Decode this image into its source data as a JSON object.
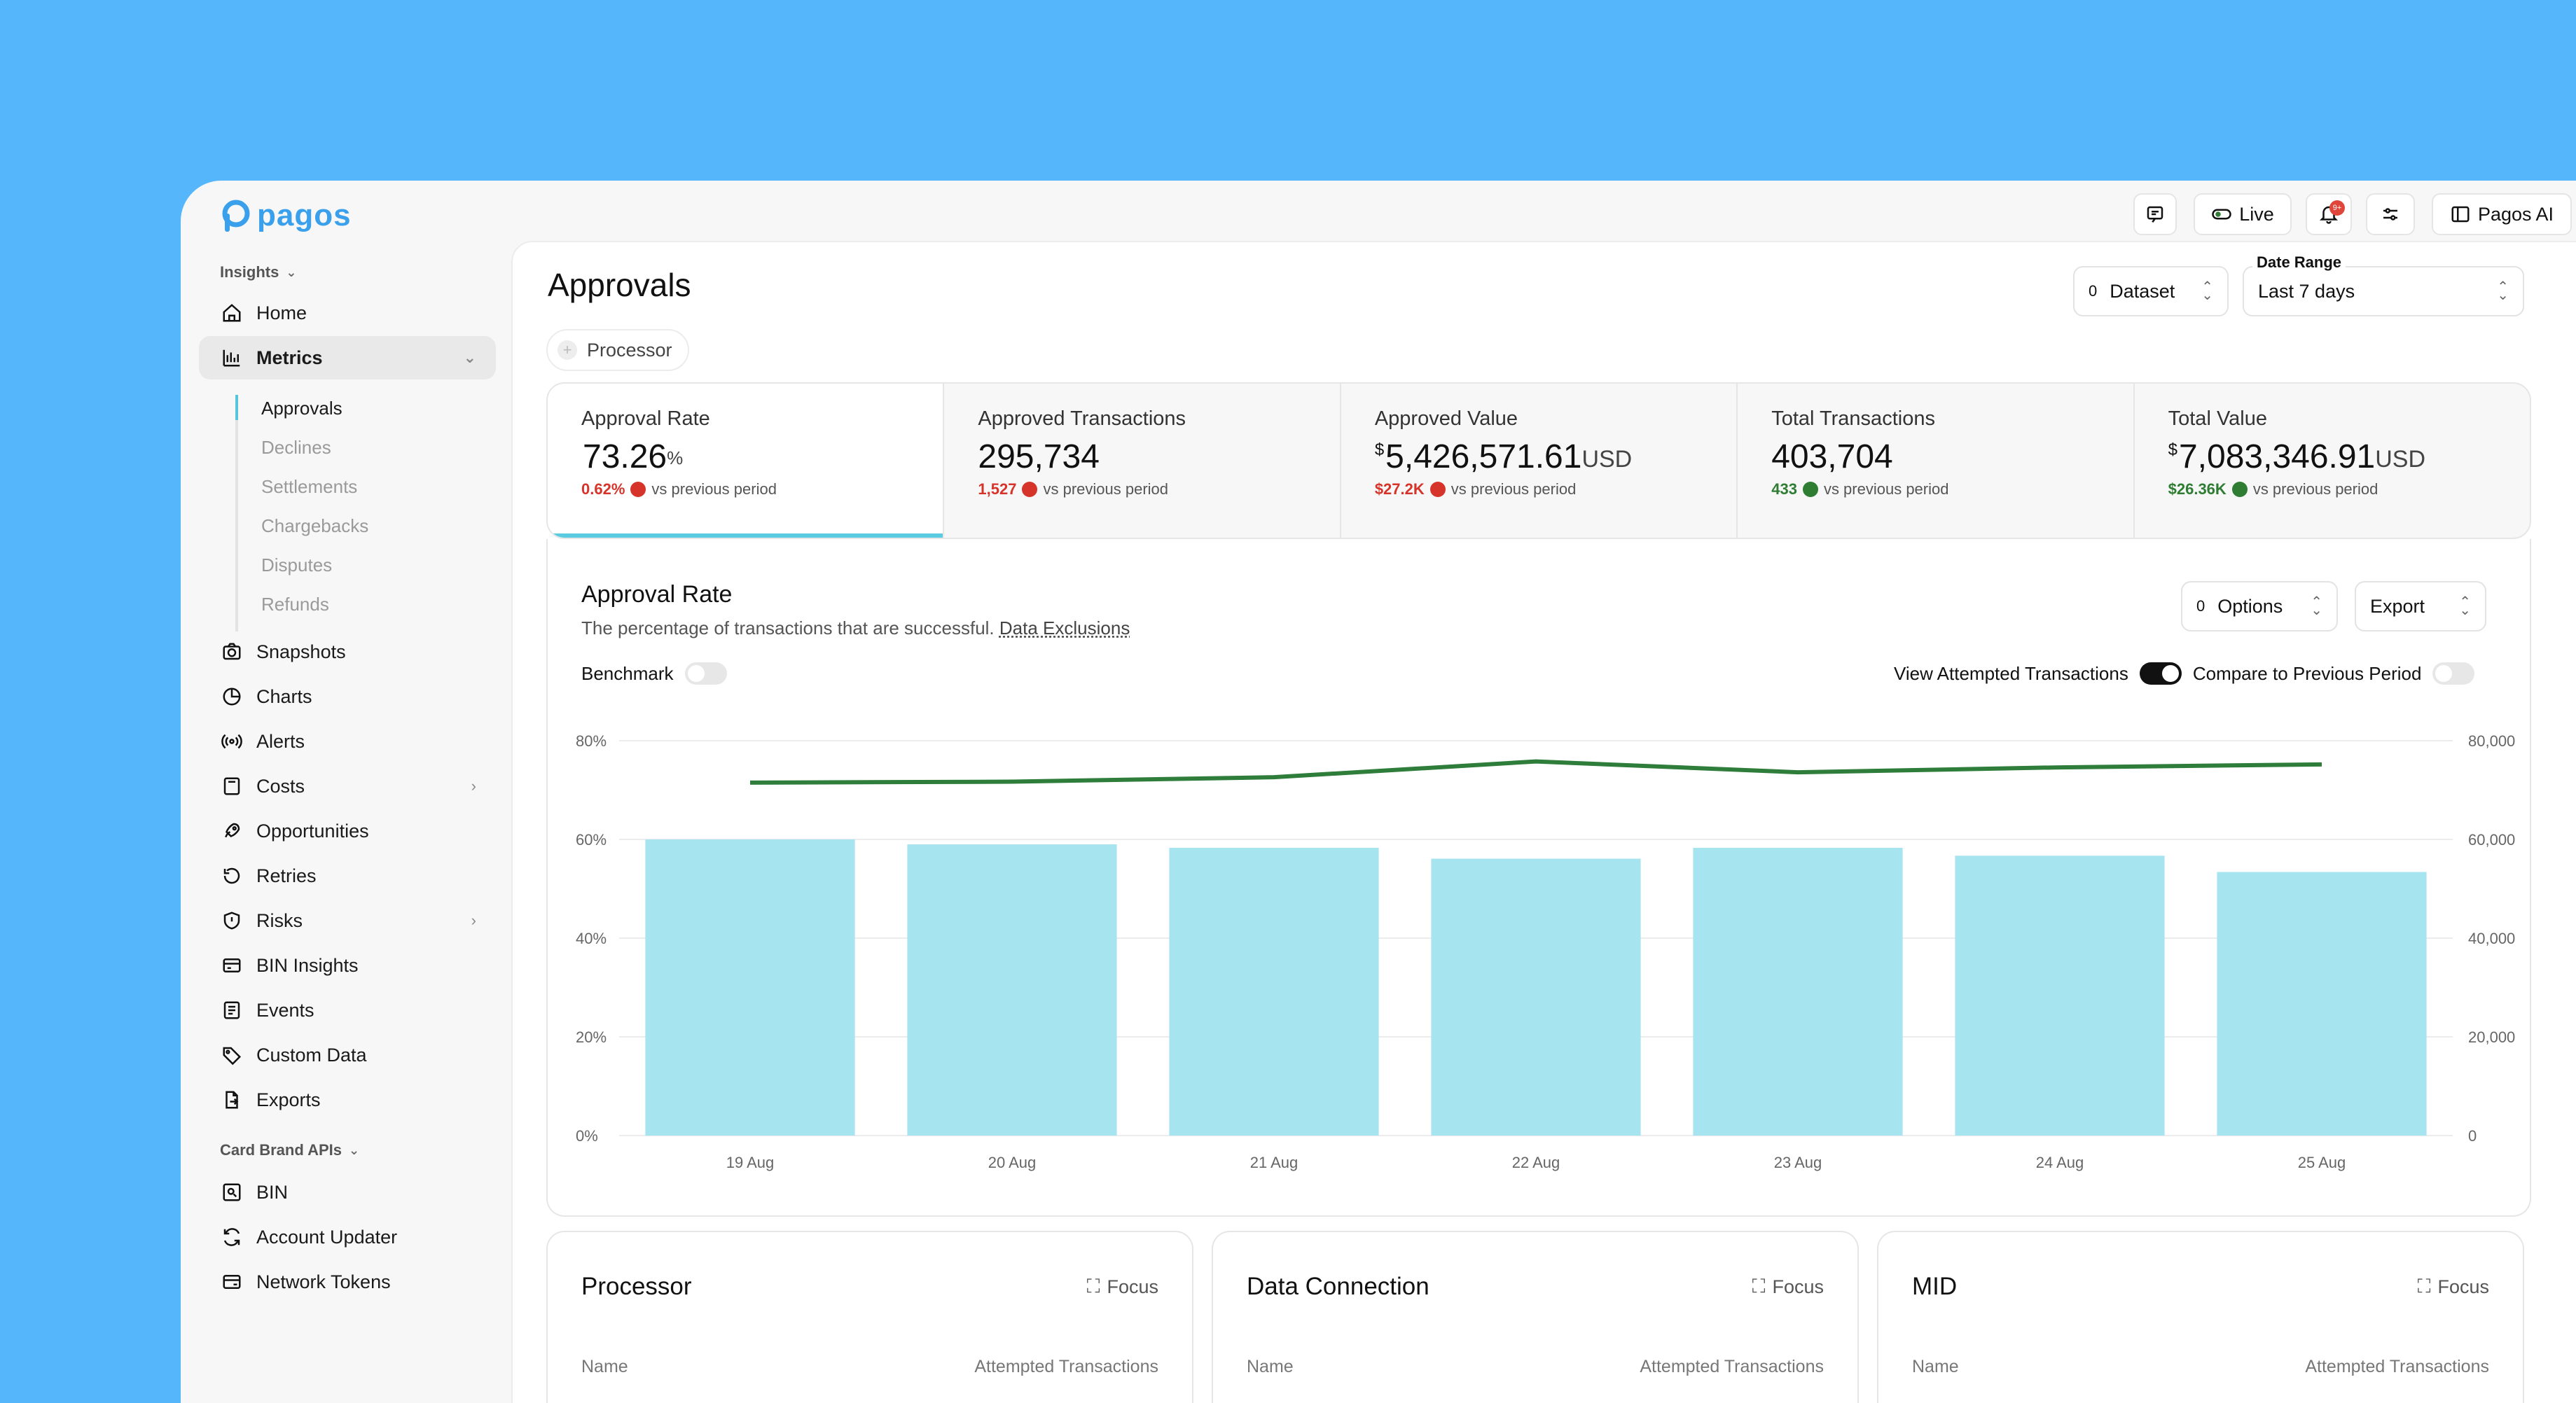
{
  "brand": {
    "name": "pagos"
  },
  "sidebar": {
    "insights_label": "Insights",
    "items": [
      {
        "label": "Home",
        "icon": "home-icon"
      },
      {
        "label": "Metrics",
        "icon": "metrics-icon"
      },
      {
        "label": "Snapshots",
        "icon": "camera-icon"
      },
      {
        "label": "Charts",
        "icon": "pie-chart-icon"
      },
      {
        "label": "Alerts",
        "icon": "broadcast-icon"
      },
      {
        "label": "Costs",
        "icon": "calculator-icon"
      },
      {
        "label": "Opportunities",
        "icon": "rocket-icon"
      },
      {
        "label": "Retries",
        "icon": "retry-icon"
      },
      {
        "label": "Risks",
        "icon": "shield-alert-icon"
      },
      {
        "label": "BIN Insights",
        "icon": "card-icon"
      },
      {
        "label": "Events",
        "icon": "list-icon"
      },
      {
        "label": "Custom Data",
        "icon": "tag-icon"
      },
      {
        "label": "Exports",
        "icon": "file-export-icon"
      }
    ],
    "metrics_sub": [
      "Approvals",
      "Declines",
      "Settlements",
      "Chargebacks",
      "Disputes",
      "Refunds"
    ],
    "card_brand_label": "Card Brand APIs",
    "card_brand_items": [
      {
        "label": "BIN",
        "icon": "bin-icon"
      },
      {
        "label": "Account Updater",
        "icon": "refresh-icon"
      },
      {
        "label": "Network Tokens",
        "icon": "token-icon"
      }
    ]
  },
  "toolbar": {
    "live_label": "Live",
    "notifications_badge": "9+",
    "ai_label": "Pagos AI"
  },
  "page": {
    "title": "Approvals",
    "dataset": {
      "count": "0",
      "label": "Dataset"
    },
    "date_range": {
      "label": "Date Range",
      "value": "Last 7 days"
    },
    "filter_chip": "Processor"
  },
  "kpis": [
    {
      "label": "Approval Rate",
      "prefix": "",
      "value": "73.26",
      "suffix_pct": "%",
      "suffix": "",
      "delta": "0.62%",
      "trend": "neg",
      "delta_text": "vs previous period"
    },
    {
      "label": "Approved Transactions",
      "prefix": "",
      "value": "295,734",
      "suffix_pct": "",
      "suffix": "",
      "delta": "1,527",
      "trend": "neg",
      "delta_text": "vs previous period"
    },
    {
      "label": "Approved Value",
      "prefix": "$",
      "value": "5,426,571.61",
      "suffix_pct": "",
      "suffix": "USD",
      "delta": "$27.2K",
      "trend": "neg",
      "delta_text": "vs previous period"
    },
    {
      "label": "Total Transactions",
      "prefix": "",
      "value": "403,704",
      "suffix_pct": "",
      "suffix": "",
      "delta": "433",
      "trend": "pos",
      "delta_text": "vs previous period"
    },
    {
      "label": "Total Value",
      "prefix": "$",
      "value": "7,083,346.91",
      "suffix_pct": "",
      "suffix": "USD",
      "delta": "$26.36K",
      "trend": "pos",
      "delta_text": "vs previous period"
    }
  ],
  "chart_section": {
    "title": "Approval Rate",
    "description": "The percentage of transactions that are successful.",
    "exclusions_link": "Data Exclusions",
    "options": {
      "count": "0",
      "label": "Options"
    },
    "export_label": "Export",
    "benchmark_label": "Benchmark",
    "view_attempted_label": "View Attempted Transactions",
    "compare_label": "Compare to Previous Period"
  },
  "chart_data": {
    "type": "bar",
    "categories": [
      "19 Aug",
      "20 Aug",
      "21 Aug",
      "22 Aug",
      "23 Aug",
      "24 Aug",
      "25 Aug"
    ],
    "series": [
      {
        "type": "bar",
        "axis": "right",
        "values": [
          60000,
          59000,
          58300,
          56100,
          58300,
          56700,
          53400
        ]
      },
      {
        "type": "line",
        "axis": "left",
        "values": [
          71.5,
          71.7,
          72.6,
          75.8,
          73.6,
          74.6,
          75.2
        ]
      }
    ],
    "y_left": {
      "ticks": [
        "80%",
        "60%",
        "40%",
        "20%",
        "0%"
      ],
      "range": [
        0,
        80
      ]
    },
    "y_right": {
      "ticks": [
        "80,000",
        "60,000",
        "40,000",
        "20,000",
        "0"
      ],
      "range": [
        0,
        80000
      ]
    },
    "colors": {
      "bar": "#a6e4ef",
      "line": "#2e7d3a"
    }
  },
  "bottom_cards": [
    {
      "title": "Processor",
      "focus": "Focus",
      "col1": "Name",
      "col2": "Attempted Transactions"
    },
    {
      "title": "Data Connection",
      "focus": "Focus",
      "col1": "Name",
      "col2": "Attempted Transactions"
    },
    {
      "title": "MID",
      "focus": "Focus",
      "col1": "Name",
      "col2": "Attempted Transactions"
    }
  ]
}
